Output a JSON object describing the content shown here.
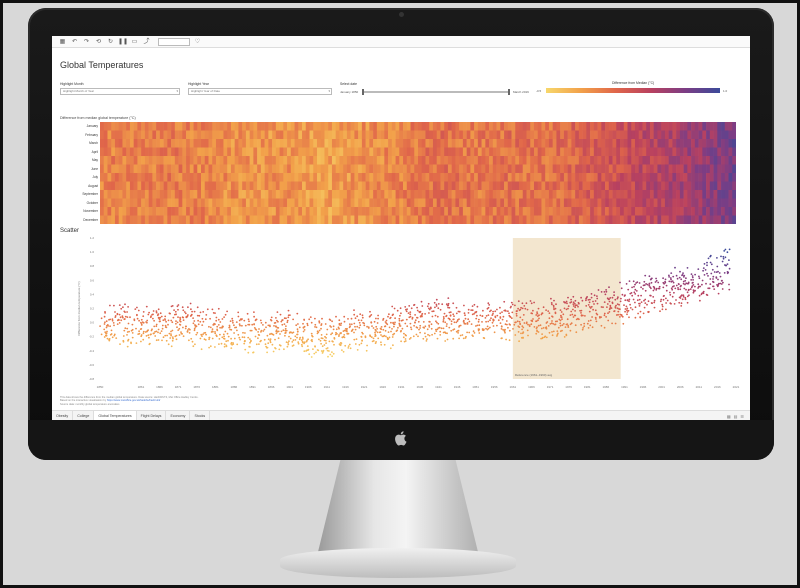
{
  "toolbar": {
    "icons": [
      "grid-icon",
      "undo-icon",
      "redo-icon",
      "revert-icon",
      "refresh-icon",
      "pause-icon",
      "present-icon",
      "share-icon",
      "zoom-icon",
      "heart-icon"
    ]
  },
  "page": {
    "title": "Global Temperatures"
  },
  "filters": {
    "month": {
      "label": "Highlight Month",
      "value": "Highlight Month of Year"
    },
    "year": {
      "label": "Highlight Year",
      "value": "Highlight Year of Date"
    },
    "date": {
      "label": "Select date",
      "start": "January 1850",
      "end": "March 2019"
    }
  },
  "legend": {
    "title": "Difference from Median (°C)",
    "min": "-0.5",
    "max": "1.0",
    "colors": [
      "#f7d76b",
      "#f2a14a",
      "#e0664a",
      "#b9415f",
      "#7c3d84",
      "#3b4a9a"
    ]
  },
  "heatmap": {
    "title": "Difference from median global temperature (°C)",
    "months": [
      "January",
      "February",
      "March",
      "April",
      "May",
      "June",
      "July",
      "August",
      "September",
      "October",
      "November",
      "December"
    ]
  },
  "scatter": {
    "title": "Scatter",
    "ylabel": "Difference from median temperature (°C)",
    "yticks": [
      "1.2",
      "1.0",
      "0.8",
      "0.6",
      "0.4",
      "0.2",
      "0.0",
      "-0.2",
      "-0.4",
      "-0.6",
      "-0.8"
    ],
    "xticks": [
      "1850",
      "1861",
      "1866",
      "1871",
      "1876",
      "1881",
      "1886",
      "1891",
      "1896",
      "1901",
      "1906",
      "1911",
      "1916",
      "1921",
      "1926",
      "1931",
      "1936",
      "1941",
      "1946",
      "1951",
      "1956",
      "1961",
      "1966",
      "1971",
      "1976",
      "1981",
      "1986",
      "1991",
      "1996",
      "2001",
      "2006",
      "2011",
      "2016",
      "2021"
    ],
    "highlight_label": "Reference (1961–1990) avg"
  },
  "chart_data": {
    "type": "scatter",
    "title": "Scatter",
    "ylabel": "Difference from median temperature (°C)",
    "xlim": [
      1850,
      2021
    ],
    "ylim": [
      -0.8,
      1.2
    ],
    "reference_period": [
      1961,
      1990
    ],
    "trend": [
      {
        "x": 1850,
        "y": -0.05
      },
      {
        "x": 1870,
        "y": -0.02
      },
      {
        "x": 1880,
        "y": -0.08
      },
      {
        "x": 1890,
        "y": -0.15
      },
      {
        "x": 1900,
        "y": -0.12
      },
      {
        "x": 1910,
        "y": -0.22
      },
      {
        "x": 1920,
        "y": -0.12
      },
      {
        "x": 1930,
        "y": -0.05
      },
      {
        "x": 1940,
        "y": 0.05
      },
      {
        "x": 1950,
        "y": 0.0
      },
      {
        "x": 1960,
        "y": 0.05
      },
      {
        "x": 1970,
        "y": 0.03
      },
      {
        "x": 1980,
        "y": 0.15
      },
      {
        "x": 1990,
        "y": 0.28
      },
      {
        "x": 2000,
        "y": 0.42
      },
      {
        "x": 2010,
        "y": 0.55
      },
      {
        "x": 2019,
        "y": 0.75
      }
    ]
  },
  "footnote": {
    "line1": "This data shows the difference from the median global temperature. Data source: HadCRUT4, Met Office Hadley Centre.",
    "line2": "Based on the interactive visualisation by",
    "link": "https://www.metoffice.gov.uk/hadobs/hadcrut4/",
    "line3": "Source data: monthly global temperature anomalies"
  },
  "tabs": [
    "Obesity",
    "College",
    "Global Temperatures",
    "Flight Delays",
    "Economy",
    "Stocks"
  ],
  "active_tab": "Global Temperatures"
}
